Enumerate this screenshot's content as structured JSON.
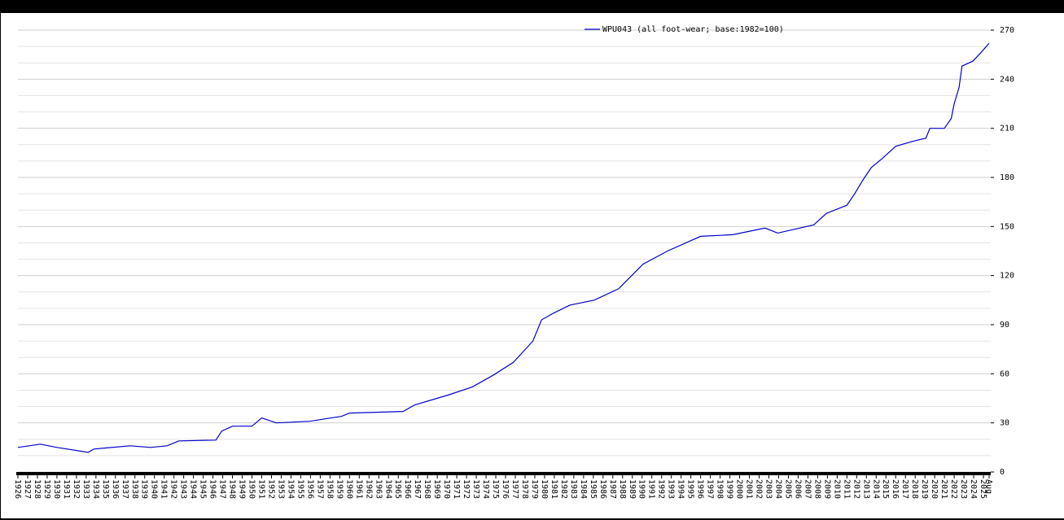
{
  "chart_data": {
    "type": "line",
    "legend": "top",
    "grid": true,
    "series": [
      {
        "name": "WPU043 (all foot-wear; base:1982=100)",
        "color": "#0000cc",
        "x": [
          1926,
          1928.3,
          1930,
          1933.2,
          1933.8,
          1937.5,
          1939.6,
          1941.3,
          1942.5,
          1946.3,
          1946.9,
          1948,
          1950,
          1951,
          1952.5,
          1955.9,
          1959.2,
          1960,
          1965.5,
          1966.7,
          1970.1,
          1972.6,
          1974.7,
          1976.8,
          1978.8,
          1979.7,
          1980.9,
          1982.6,
          1985.1,
          1987.6,
          1990.1,
          1992.6,
          1996,
          1999.3,
          2002.6,
          2003.9,
          2007.6,
          2008.9,
          2011,
          2011.8,
          2012.6,
          2013.5,
          2014.7,
          2016,
          2017.7,
          2019.1,
          2019.5,
          2021,
          2021.7,
          2022,
          2022.5,
          2022.8,
          2023.9,
          2024.7,
          2025.58
        ],
        "values": [
          15,
          17,
          15,
          12,
          14,
          16,
          15,
          16,
          19,
          19.5,
          25,
          28,
          28,
          33,
          30,
          31,
          34,
          36,
          37,
          41,
          47,
          52,
          59,
          67,
          80,
          93,
          97,
          102,
          105,
          112,
          127,
          135,
          144,
          145,
          149,
          146,
          151,
          158,
          163,
          170,
          178,
          186,
          192,
          199,
          202,
          204,
          210,
          210,
          216,
          225,
          235,
          248,
          251,
          256,
          262
        ]
      }
    ],
    "xlim": [
      1926,
      2025.58
    ],
    "xticks": [
      1926,
      1927,
      1928,
      1929,
      1930,
      1931,
      1932,
      1933,
      1934,
      1935,
      1936,
      1937,
      1938,
      1939,
      1940,
      1941,
      1942,
      1943,
      1944,
      1945,
      1946,
      1947,
      1948,
      1949,
      1950,
      1951,
      1952,
      1953,
      1954,
      1955,
      1956,
      1957,
      1958,
      1959,
      1960,
      1961,
      1962,
      1963,
      1964,
      1965,
      1966,
      1967,
      1968,
      1969,
      1970,
      1971,
      1972,
      1973,
      1974,
      1975,
      1976,
      1977,
      1978,
      1979,
      1980,
      1981,
      1982,
      1983,
      1984,
      1985,
      1986,
      1987,
      1988,
      1989,
      1990,
      1991,
      1992,
      1993,
      1994,
      1995,
      1996,
      1997,
      1998,
      1999,
      2000,
      2001,
      2002,
      2003,
      2004,
      2005,
      2006,
      2007,
      2008,
      2009,
      2010,
      2011,
      2012,
      2013,
      2014,
      2015,
      2016,
      2017,
      2018,
      2019,
      2020,
      2021,
      2022,
      2023,
      2024,
      2025,
      {
        "value": 2025.58,
        "label": "Aug"
      }
    ],
    "ylim": [
      0,
      270
    ],
    "yticks": [
      0,
      30,
      60,
      90,
      120,
      150,
      180,
      210,
      240,
      270
    ],
    "yminor": [
      10,
      20,
      40,
      50,
      70,
      80,
      100,
      110,
      130,
      140,
      160,
      170,
      190,
      200,
      220,
      230,
      250,
      260
    ]
  }
}
